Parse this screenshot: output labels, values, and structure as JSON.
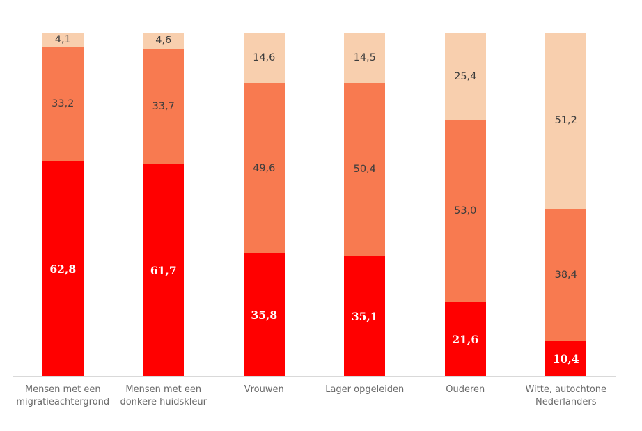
{
  "chart_data": {
    "type": "bar",
    "subtype": "stacked-100-percent",
    "title": "",
    "xlabel": "",
    "ylabel": "",
    "ylim": [
      0,
      100
    ],
    "grid": false,
    "legend": "none",
    "categories": [
      "Mensen met een migratieachtergrond",
      "Mensen met een donkere huidskleur",
      "Vrouwen",
      "Lager opgeleiden",
      "Ouderen",
      "Witte, autochtone Nederlanders"
    ],
    "category_label_lines": [
      [
        "Mensen met een",
        "migratieachtergrond"
      ],
      [
        "Mensen met een",
        "donkere huidskleur"
      ],
      [
        "Vrouwen"
      ],
      [
        "Lager opgeleiden"
      ],
      [
        "Ouderen"
      ],
      [
        "Witte, autochtone",
        "Nederlanders"
      ]
    ],
    "series": [
      {
        "name": "bottom-segment",
        "color": "#ff0000",
        "values": [
          62.8,
          61.7,
          35.8,
          35.1,
          21.6,
          10.4
        ],
        "labels": [
          "62,8",
          "61,7",
          "35,8",
          "35,1",
          "21,6",
          "10,4"
        ],
        "label_style": "light"
      },
      {
        "name": "middle-segment",
        "color": "#f87a50",
        "values": [
          33.2,
          33.7,
          49.6,
          50.4,
          53.0,
          38.4
        ],
        "labels": [
          "33,2",
          "33,7",
          "49,6",
          "50,4",
          "53,0",
          "38,4"
        ],
        "label_style": "dark"
      },
      {
        "name": "top-segment",
        "color": "#f8cfae",
        "values": [
          4.1,
          4.6,
          14.6,
          14.5,
          25.4,
          51.2
        ],
        "labels": [
          "4,1",
          "4,6",
          "14,6",
          "14,5",
          "25,4",
          "51,2"
        ],
        "label_style": "dark"
      }
    ],
    "colors": {
      "axis_line": "#d9d9d9",
      "category_label": "#6a6a6a",
      "value_label_dark": "#3d3d3d",
      "value_label_light": "#ffffff",
      "background": "#ffffff"
    }
  }
}
